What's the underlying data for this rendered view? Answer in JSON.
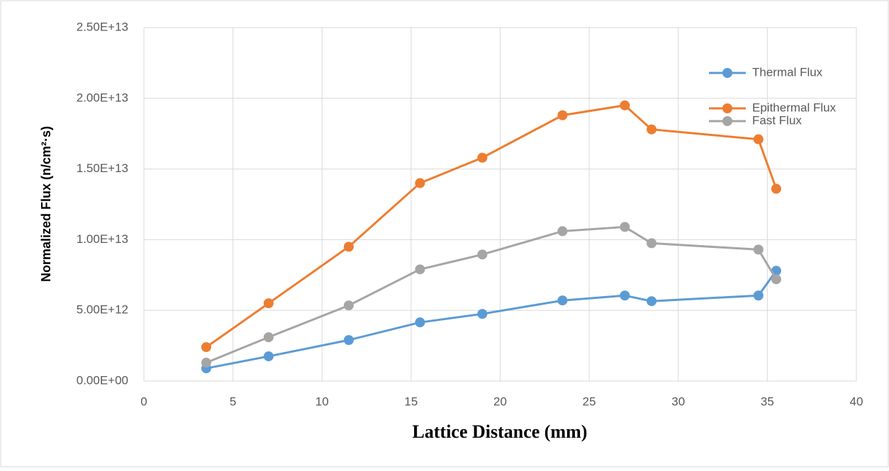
{
  "chart_data": {
    "type": "line",
    "x_label": "Lattice Distance (mm)",
    "y_label": "Normalized Flux (n/cm²·s)",
    "x": [
      3.5,
      7,
      11.5,
      15.5,
      19,
      23.5,
      27,
      28.5,
      34.5,
      35.5
    ],
    "series": [
      {
        "name": "Thermal Flux",
        "color": "#5b9bd5",
        "values": [
          900000000000.0,
          1750000000000.0,
          2900000000000.0,
          4150000000000.0,
          4750000000000.0,
          5700000000000.0,
          6050000000000.0,
          5650000000000.0,
          6050000000000.0,
          7800000000000.0
        ]
      },
      {
        "name": "Epithermal Flux",
        "color": "#ed7d31",
        "values": [
          2400000000000.0,
          5500000000000.0,
          9500000000000.0,
          14000000000000.0,
          15800000000000.0,
          18800000000000.0,
          19500000000000.0,
          17800000000000.0,
          17100000000000.0,
          13600000000000.0
        ]
      },
      {
        "name": "Fast Flux",
        "color": "#a5a5a5",
        "values": [
          1300000000000.0,
          3100000000000.0,
          5350000000000.0,
          7900000000000.0,
          8950000000000.0,
          10600000000000.0,
          10900000000000.0,
          9750000000000.0,
          9300000000000.0,
          7200000000000.0
        ]
      }
    ],
    "xlim": [
      0,
      40
    ],
    "xticks": [
      0,
      5,
      10,
      15,
      20,
      25,
      30,
      35,
      40
    ],
    "ylim": [
      0,
      25000000000000.0
    ],
    "yticks": [
      {
        "value": 0,
        "label": "0.00E+00"
      },
      {
        "value": 5000000000000.0,
        "label": "5.00E+12"
      },
      {
        "value": 10000000000000.0,
        "label": "1.00E+13"
      },
      {
        "value": 15000000000000.0,
        "label": "1.50E+13"
      },
      {
        "value": 20000000000000.0,
        "label": "2.00E+13"
      },
      {
        "value": 25000000000000.0,
        "label": "2.50E+13"
      }
    ],
    "grid": true,
    "legend": "upper right"
  }
}
